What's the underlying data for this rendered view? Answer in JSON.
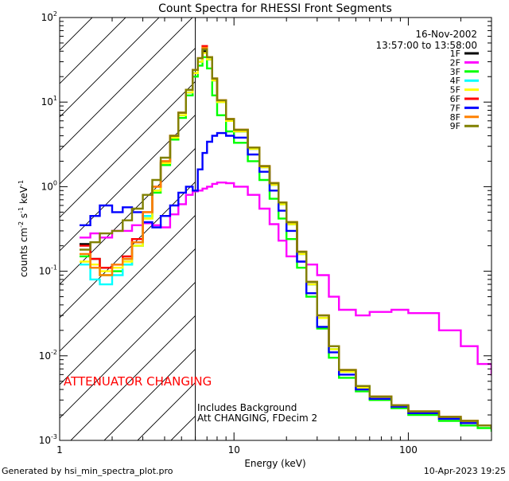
{
  "chart_data": {
    "type": "line",
    "title": "Count Spectra for RHESSI Front Segments",
    "date": "16-Nov-2002",
    "time_range": "13:57:00 to 13:58:00",
    "xlabel": "Energy (keV)",
    "ylabel": "counts cm⁻² s⁻¹ keV⁻¹",
    "x_scale": "log",
    "y_scale": "log",
    "xlim": [
      1,
      300
    ],
    "ylim": [
      0.001,
      100
    ],
    "x_ticks": [
      {
        "value": 1,
        "label": "1"
      },
      {
        "value": 10,
        "label": "10"
      },
      {
        "value": 100,
        "label": "100"
      }
    ],
    "y_ticks": [
      {
        "value": 100,
        "base": "10",
        "exp": "2"
      },
      {
        "value": 10,
        "base": "10",
        "exp": "1"
      },
      {
        "value": 1,
        "base": "10",
        "exp": "0"
      },
      {
        "value": 0.1,
        "base": "10",
        "exp": "-1"
      },
      {
        "value": 0.01,
        "base": "10",
        "exp": "-2"
      },
      {
        "value": 0.001,
        "base": "10",
        "exp": "-3"
      }
    ],
    "attenuator_boundary_keV": 6,
    "hatched_region_keV": [
      1,
      6
    ],
    "annotations": {
      "attenuator": "ATTENUATOR CHANGING",
      "background": "Includes Background",
      "att_status": "Att CHANGING, FDecim 2"
    },
    "series": [
      {
        "name": "1F",
        "color": "#000000",
        "x": [
          1.3,
          1.5,
          1.7,
          2.0,
          2.3,
          2.6,
          3.0,
          3.4,
          3.8,
          4.3,
          4.8,
          5.3,
          5.8,
          6.2,
          6.6,
          7.0,
          7.5,
          8,
          9,
          10,
          12,
          14,
          16,
          18,
          20,
          23,
          26,
          30,
          35,
          40,
          50,
          60,
          80,
          100,
          150,
          200,
          250,
          300
        ],
        "y": [
          0.21,
          0.14,
          0.11,
          0.12,
          0.14,
          0.22,
          0.45,
          0.9,
          1.9,
          3.8,
          7,
          13,
          22,
          30,
          40,
          32,
          18,
          10,
          6,
          4.5,
          2.8,
          1.7,
          1.05,
          0.62,
          0.36,
          0.16,
          0.07,
          0.028,
          0.012,
          0.0065,
          0.0042,
          0.0032,
          0.0025,
          0.0021,
          0.0018,
          0.0016,
          0.0015,
          0.0014
        ]
      },
      {
        "name": "2F",
        "color": "#ff00ff",
        "x": [
          1.3,
          1.5,
          1.7,
          2.0,
          2.3,
          2.6,
          3.0,
          3.4,
          3.8,
          4.3,
          4.8,
          5.3,
          5.8,
          6.2,
          6.6,
          7.0,
          7.5,
          8,
          9,
          10,
          12,
          14,
          16,
          18,
          20,
          23,
          26,
          30,
          35,
          40,
          50,
          60,
          80,
          100,
          150,
          200,
          250,
          300
        ],
        "y": [
          0.25,
          0.28,
          0.25,
          0.3,
          0.3,
          0.35,
          0.37,
          0.35,
          0.33,
          0.47,
          0.62,
          0.8,
          0.88,
          0.9,
          0.95,
          1.0,
          1.08,
          1.12,
          1.1,
          1.0,
          0.8,
          0.55,
          0.36,
          0.23,
          0.15,
          0.13,
          0.12,
          0.09,
          0.05,
          0.035,
          0.03,
          0.033,
          0.035,
          0.032,
          0.02,
          0.013,
          0.008,
          0.006
        ]
      },
      {
        "name": "3F",
        "color": "#00ff00",
        "x": [
          1.3,
          1.5,
          1.7,
          2.0,
          2.3,
          2.6,
          3.0,
          3.4,
          3.8,
          4.3,
          4.8,
          5.3,
          5.8,
          6.2,
          6.6,
          7.0,
          7.5,
          8,
          9,
          10,
          12,
          14,
          16,
          18,
          20,
          23,
          26,
          30,
          35,
          40,
          50,
          60,
          80,
          100,
          150,
          200,
          250,
          300
        ],
        "y": [
          0.15,
          0.11,
          0.09,
          0.1,
          0.12,
          0.2,
          0.42,
          0.85,
          1.8,
          3.6,
          6.5,
          12,
          20,
          27,
          34,
          25,
          12,
          7,
          4.5,
          3.3,
          2.0,
          1.2,
          0.72,
          0.42,
          0.24,
          0.11,
          0.05,
          0.021,
          0.0095,
          0.0055,
          0.0038,
          0.003,
          0.0024,
          0.002,
          0.0017,
          0.0015,
          0.0014,
          0.0013
        ]
      },
      {
        "name": "4F",
        "color": "#00ffff",
        "x": [
          1.3,
          1.5,
          1.7,
          2.0,
          2.3,
          2.6,
          3.0,
          3.4,
          3.8,
          4.3,
          4.8,
          5.3,
          5.8,
          6.2,
          6.6,
          7.0,
          7.5,
          8,
          9,
          10,
          12,
          14,
          16,
          18,
          20,
          23,
          26,
          30,
          35,
          40,
          50,
          60,
          80,
          100,
          150,
          200,
          250,
          300
        ],
        "y": [
          0.12,
          0.08,
          0.07,
          0.09,
          0.12,
          0.2,
          0.45,
          0.9,
          1.9,
          3.8,
          7,
          13,
          22,
          30,
          42,
          32,
          18,
          10,
          6,
          4.5,
          2.8,
          1.7,
          1.05,
          0.62,
          0.36,
          0.16,
          0.07,
          0.028,
          0.012,
          0.0065,
          0.0042,
          0.0032,
          0.0025,
          0.0021,
          0.0018,
          0.0016,
          0.0015,
          0.0014
        ]
      },
      {
        "name": "5F",
        "color": "#ffff00",
        "x": [
          1.3,
          1.5,
          1.7,
          2.0,
          2.3,
          2.6,
          3.0,
          3.4,
          3.8,
          4.3,
          4.8,
          5.3,
          5.8,
          6.2,
          6.6,
          7.0,
          7.5,
          8,
          9,
          10,
          12,
          14,
          16,
          18,
          20,
          23,
          26,
          30,
          35,
          40,
          50,
          60,
          80,
          100,
          150,
          200,
          250,
          300
        ],
        "y": [
          0.13,
          0.12,
          0.1,
          0.11,
          0.13,
          0.2,
          0.42,
          0.9,
          1.9,
          3.8,
          7,
          13,
          22,
          30,
          38,
          32,
          18,
          10,
          6,
          4.5,
          2.8,
          1.7,
          1.05,
          0.62,
          0.36,
          0.16,
          0.07,
          0.028,
          0.012,
          0.0065,
          0.0042,
          0.0032,
          0.0025,
          0.0021,
          0.0018,
          0.0016,
          0.0015,
          0.0014
        ]
      },
      {
        "name": "6F",
        "color": "#ff0000",
        "x": [
          1.3,
          1.5,
          1.7,
          2.0,
          2.3,
          2.6,
          3.0,
          3.4,
          3.8,
          4.3,
          4.8,
          5.3,
          5.8,
          6.2,
          6.6,
          7.0,
          7.5,
          8,
          9,
          10,
          12,
          14,
          16,
          18,
          20,
          23,
          26,
          30,
          35,
          40,
          50,
          60,
          80,
          100,
          150,
          200,
          250,
          300
        ],
        "y": [
          0.2,
          0.14,
          0.11,
          0.12,
          0.15,
          0.24,
          0.5,
          1.0,
          2.0,
          4.0,
          7.5,
          14,
          24,
          33,
          46,
          34,
          19,
          10.5,
          6.3,
          4.7,
          2.9,
          1.75,
          1.1,
          0.65,
          0.38,
          0.17,
          0.075,
          0.03,
          0.013,
          0.0068,
          0.0044,
          0.0033,
          0.0026,
          0.0022,
          0.0019,
          0.0017,
          0.0015,
          0.0014
        ]
      },
      {
        "name": "7F",
        "color": "#0000ff",
        "x": [
          1.3,
          1.5,
          1.7,
          2.0,
          2.3,
          2.6,
          3.0,
          3.4,
          3.8,
          4.3,
          4.8,
          5.3,
          5.8,
          6.2,
          6.6,
          7.0,
          7.5,
          8,
          9,
          10,
          12,
          14,
          16,
          18,
          20,
          23,
          26,
          30,
          35,
          40,
          50,
          60,
          80,
          100,
          150,
          200,
          250,
          300
        ],
        "y": [
          0.35,
          0.45,
          0.6,
          0.5,
          0.57,
          0.5,
          0.38,
          0.33,
          0.45,
          0.6,
          0.85,
          1.0,
          0.9,
          1.6,
          2.5,
          3.4,
          4.0,
          4.3,
          4.0,
          3.8,
          2.4,
          1.5,
          0.9,
          0.52,
          0.3,
          0.13,
          0.055,
          0.022,
          0.011,
          0.006,
          0.004,
          0.0031,
          0.0025,
          0.0021,
          0.0018,
          0.0016,
          0.0015,
          0.0014
        ]
      },
      {
        "name": "8F",
        "color": "#ff8000",
        "x": [
          1.3,
          1.5,
          1.7,
          2.0,
          2.3,
          2.6,
          3.0,
          3.4,
          3.8,
          4.3,
          4.8,
          5.3,
          5.8,
          6.2,
          6.6,
          7.0,
          7.5,
          8,
          9,
          10,
          12,
          14,
          16,
          18,
          20,
          23,
          26,
          30,
          35,
          40,
          50,
          60,
          80,
          100,
          150,
          200,
          250,
          300
        ],
        "y": [
          0.16,
          0.11,
          0.09,
          0.12,
          0.14,
          0.22,
          0.5,
          1.0,
          2.0,
          4.0,
          7.5,
          14,
          24,
          33,
          44,
          34,
          19,
          10.5,
          6.3,
          4.7,
          2.9,
          1.75,
          1.1,
          0.65,
          0.38,
          0.17,
          0.075,
          0.03,
          0.013,
          0.0068,
          0.0044,
          0.0033,
          0.0026,
          0.0022,
          0.0019,
          0.0017,
          0.0015,
          0.0014
        ]
      },
      {
        "name": "9F",
        "color": "#808000",
        "x": [
          1.3,
          1.5,
          1.7,
          2.0,
          2.3,
          2.6,
          3.0,
          3.4,
          3.8,
          4.3,
          4.8,
          5.3,
          5.8,
          6.2,
          6.6,
          7.0,
          7.5,
          8,
          9,
          10,
          12,
          14,
          16,
          18,
          20,
          23,
          26,
          30,
          35,
          40,
          50,
          60,
          80,
          100,
          150,
          200,
          250,
          300
        ],
        "y": [
          0.18,
          0.22,
          0.28,
          0.3,
          0.4,
          0.55,
          0.8,
          1.2,
          2.2,
          4.0,
          7.5,
          14,
          24,
          33,
          42,
          34,
          19,
          10.5,
          6.3,
          4.7,
          2.9,
          1.75,
          1.1,
          0.65,
          0.38,
          0.17,
          0.075,
          0.03,
          0.013,
          0.0068,
          0.0044,
          0.0033,
          0.0026,
          0.0022,
          0.0019,
          0.0017,
          0.0015,
          0.0014
        ]
      }
    ]
  },
  "footer": {
    "generated_by": "Generated by hsi_min_spectra_plot.pro",
    "timestamp": "10-Apr-2023 19:25"
  }
}
